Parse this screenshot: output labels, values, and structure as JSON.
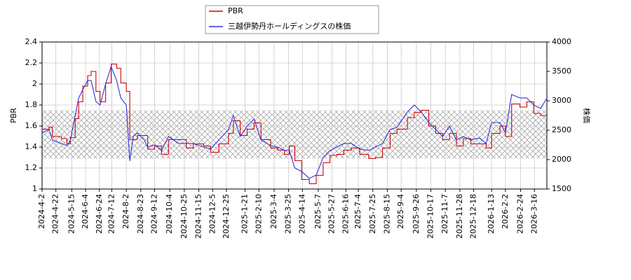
{
  "chart_data": {
    "type": "line",
    "y_label": "PBR",
    "y2_label": "株価",
    "x": [
      "2024-4-2",
      "2024-4-12",
      "2024-4-17",
      "2024-4-30",
      "2024-5-8",
      "2024-5-13",
      "2024-5-20",
      "2024-5-25",
      "2024-5-31",
      "2024-6-7",
      "2024-6-12",
      "2024-6-19",
      "2024-6-25",
      "2024-7-3",
      "2024-7-11",
      "2024-7-19",
      "2024-7-25",
      "2024-8-2",
      "2024-8-7",
      "2024-8-12",
      "2024-8-18",
      "2024-8-28",
      "2024-9-2",
      "2024-9-12",
      "2024-9-22",
      "2024-10-2",
      "2024-10-17",
      "2024-10-28",
      "2024-11-7",
      "2024-11-22",
      "2024-12-2",
      "2024-12-14",
      "2024-12-28",
      "2025-1-4",
      "2025-1-14",
      "2025-1-24",
      "2025-2-3",
      "2025-2-13",
      "2025-2-27",
      "2025-3-9",
      "2025-3-19",
      "2025-3-26",
      "2025-4-3",
      "2025-4-13",
      "2025-4-24",
      "2025-5-4",
      "2025-5-14",
      "2025-5-24",
      "2025-6-3",
      "2025-6-13",
      "2025-6-24",
      "2025-7-6",
      "2025-7-19",
      "2025-7-29",
      "2025-8-8",
      "2025-8-19",
      "2025-8-29",
      "2025-9-13",
      "2025-9-23",
      "2025-10-3",
      "2025-10-14",
      "2025-10-24",
      "2025-11-3",
      "2025-11-13",
      "2025-11-23",
      "2025-12-3",
      "2025-12-14",
      "2025-12-26",
      "2026-1-5",
      "2026-1-13",
      "2026-1-25",
      "2026-2-2",
      "2026-2-11",
      "2026-2-23",
      "2026-3-5",
      "2026-3-15",
      "2026-3-25",
      "2026-4-3"
    ],
    "series": [
      {
        "name": "PBR",
        "color": "#d00000",
        "step": true,
        "values": [
          1.57,
          1.59,
          1.5,
          1.48,
          1.43,
          1.49,
          1.67,
          1.83,
          1.98,
          2.08,
          2.12,
          1.93,
          1.83,
          2.01,
          2.19,
          2.15,
          2.01,
          1.93,
          1.47,
          1.47,
          1.51,
          1.51,
          1.38,
          1.41,
          1.33,
          1.47,
          1.47,
          1.39,
          1.43,
          1.41,
          1.35,
          1.43,
          1.53,
          1.65,
          1.51,
          1.57,
          1.63,
          1.47,
          1.39,
          1.37,
          1.33,
          1.41,
          1.27,
          1.09,
          1.05,
          1.13,
          1.25,
          1.32,
          1.33,
          1.37,
          1.39,
          1.33,
          1.29,
          1.3,
          1.39,
          1.53,
          1.57,
          1.68,
          1.73,
          1.75,
          1.6,
          1.53,
          1.47,
          1.53,
          1.41,
          1.48,
          1.43,
          1.43,
          1.39,
          1.53,
          1.6,
          1.5,
          1.81,
          1.78,
          1.83,
          1.72,
          1.7,
          1.7
        ]
      },
      {
        "name": "三越伊勢丹ホールディングスの株価",
        "color": "#3030e0",
        "axis": "y2",
        "values": [
          2452,
          2512,
          2333,
          2274,
          2238,
          2333,
          2750,
          3048,
          3190,
          3345,
          3345,
          2988,
          2929,
          3286,
          3583,
          3345,
          3048,
          2929,
          1976,
          2393,
          2452,
          2333,
          2214,
          2250,
          2155,
          2393,
          2274,
          2274,
          2274,
          2214,
          2179,
          2333,
          2512,
          2750,
          2393,
          2571,
          2690,
          2333,
          2238,
          2214,
          2155,
          2155,
          1857,
          1798,
          1679,
          1738,
          2036,
          2155,
          2214,
          2274,
          2274,
          2179,
          2155,
          2214,
          2274,
          2512,
          2548,
          2810,
          2929,
          2810,
          2631,
          2512,
          2393,
          2571,
          2333,
          2393,
          2333,
          2369,
          2274,
          2631,
          2631,
          2452,
          3107,
          3048,
          3048,
          2929,
          2869,
          3048
        ]
      }
    ],
    "ylim": [
      1.0,
      2.4
    ],
    "yticks": [
      1.0,
      1.2,
      1.4,
      1.6,
      1.8,
      2.0,
      2.2,
      2.4
    ],
    "y2lim": [
      1500,
      4000
    ],
    "y2ticks": [
      1500,
      2000,
      2500,
      3000,
      3500,
      4000
    ],
    "shaded_range": [
      1.29,
      1.75
    ],
    "grid": true,
    "xticks": [
      "2024-4-2",
      "2024-4-22",
      "2024-5-15",
      "2024-6-4",
      "2024-6-24",
      "2024-7-12",
      "2024-8-2",
      "2024-8-23",
      "2024-9-12",
      "2024-10-4",
      "2024-10-25",
      "2024-11-15",
      "2024-12-5",
      "2024-12-25",
      "2025-1-21",
      "2025-2-10",
      "2025-3-4",
      "2025-3-25",
      "2025-4-14",
      "2025-5-7",
      "2025-5-27",
      "2025-6-16",
      "2025-7-4",
      "2025-7-25",
      "2025-8-15",
      "2025-9-4",
      "2025-9-26",
      "2025-10-17",
      "2025-11-7",
      "2025-11-28",
      "2025-12-18",
      "2026-1-13",
      "2026-2-2",
      "2026-2-24",
      "2026-3-16"
    ]
  }
}
